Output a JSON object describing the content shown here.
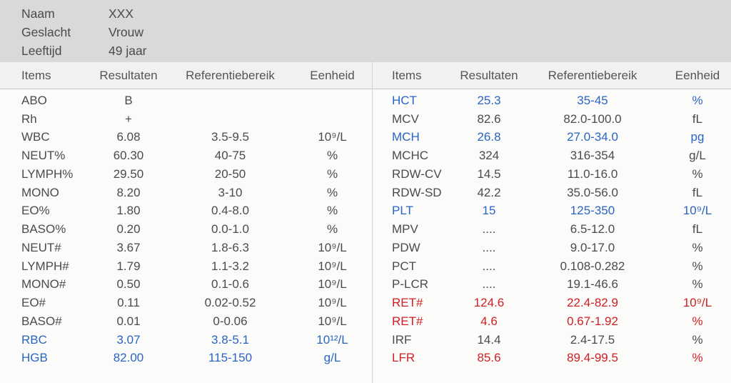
{
  "patient": {
    "fields": [
      {
        "label": "Naam",
        "value": "XXX"
      },
      {
        "label": "Geslacht",
        "value": "Vrouw"
      },
      {
        "label": "Leeftijd",
        "value": "49 jaar"
      }
    ]
  },
  "table_headers": [
    "Items",
    "Resultaten",
    "Referentiebereik",
    "Eenheid"
  ],
  "colors": {
    "text_normal": "#4b4b4d",
    "flag_low_blue": "#2a64c4",
    "flag_abnormal_red": "#d01f24"
  },
  "left_table": {
    "rows": [
      {
        "item": "ABO",
        "result": "B",
        "range": "",
        "unit": "",
        "flag": ""
      },
      {
        "item": "Rh",
        "result": "+",
        "range": "",
        "unit": "",
        "flag": ""
      },
      {
        "item": "WBC",
        "result": "6.08",
        "range": "3.5-9.5",
        "unit": "10⁹/L",
        "flag": ""
      },
      {
        "item": "NEUT%",
        "result": "60.30",
        "range": "40-75",
        "unit": "%",
        "flag": ""
      },
      {
        "item": "LYMPH%",
        "result": "29.50",
        "range": "20-50",
        "unit": "%",
        "flag": ""
      },
      {
        "item": "MONO",
        "result": "8.20",
        "range": "3-10",
        "unit": "%",
        "flag": ""
      },
      {
        "item": "EO%",
        "result": "1.80",
        "range": "0.4-8.0",
        "unit": "%",
        "flag": ""
      },
      {
        "item": "BASO%",
        "result": "0.20",
        "range": "0.0-1.0",
        "unit": "%",
        "flag": ""
      },
      {
        "item": "NEUT#",
        "result": "3.67",
        "range": "1.8-6.3",
        "unit": "10⁹/L",
        "flag": ""
      },
      {
        "item": "LYMPH#",
        "result": "1.79",
        "range": "1.1-3.2",
        "unit": "10⁹/L",
        "flag": ""
      },
      {
        "item": "MONO#",
        "result": "0.50",
        "range": "0.1-0.6",
        "unit": "10⁹/L",
        "flag": ""
      },
      {
        "item": "EO#",
        "result": "0.11",
        "range": "0.02-0.52",
        "unit": "10⁹/L",
        "flag": ""
      },
      {
        "item": "BASO#",
        "result": "0.01",
        "range": "0-0.06",
        "unit": "10⁹/L",
        "flag": ""
      },
      {
        "item": "RBC",
        "result": "3.07",
        "range": "3.8-5.1",
        "unit": "10¹²/L",
        "flag": "blue"
      },
      {
        "item": "HGB",
        "result": "82.00",
        "range": "115-150",
        "unit": "g/L",
        "flag": "blue"
      }
    ]
  },
  "right_table": {
    "rows": [
      {
        "item": "HCT",
        "result": "25.3",
        "range": "35-45",
        "unit": "%",
        "flag": "blue"
      },
      {
        "item": "MCV",
        "result": "82.6",
        "range": "82.0-100.0",
        "unit": "fL",
        "flag": ""
      },
      {
        "item": "MCH",
        "result": "26.8",
        "range": "27.0-34.0",
        "unit": "pg",
        "flag": "blue"
      },
      {
        "item": "MCHC",
        "result": "324",
        "range": "316-354",
        "unit": "g/L",
        "flag": ""
      },
      {
        "item": "RDW-CV",
        "result": "14.5",
        "range": "11.0-16.0",
        "unit": "%",
        "flag": ""
      },
      {
        "item": "RDW-SD",
        "result": "42.2",
        "range": "35.0-56.0",
        "unit": "fL",
        "flag": ""
      },
      {
        "item": "PLT",
        "result": "15",
        "range": "125-350",
        "unit": "10⁹/L",
        "flag": "blue"
      },
      {
        "item": "MPV",
        "result": "....",
        "range": "6.5-12.0",
        "unit": "fL",
        "flag": ""
      },
      {
        "item": "PDW",
        "result": "....",
        "range": "9.0-17.0",
        "unit": "%",
        "flag": ""
      },
      {
        "item": "PCT",
        "result": "....",
        "range": "0.108-0.282",
        "unit": "%",
        "flag": ""
      },
      {
        "item": "P-LCR",
        "result": "....",
        "range": "19.1-46.6",
        "unit": "%",
        "flag": ""
      },
      {
        "item": "RET#",
        "result": "124.6",
        "range": "22.4-82.9",
        "unit": "10⁹/L",
        "flag": "red"
      },
      {
        "item": "RET#",
        "result": "4.6",
        "range": "0.67-1.92",
        "unit": "%",
        "flag": "red"
      },
      {
        "item": "IRF",
        "result": "14.4",
        "range": "2.4-17.5",
        "unit": "%",
        "flag": ""
      },
      {
        "item": "LFR",
        "result": "85.6",
        "range": "89.4-99.5",
        "unit": "%",
        "flag": "red"
      }
    ]
  }
}
